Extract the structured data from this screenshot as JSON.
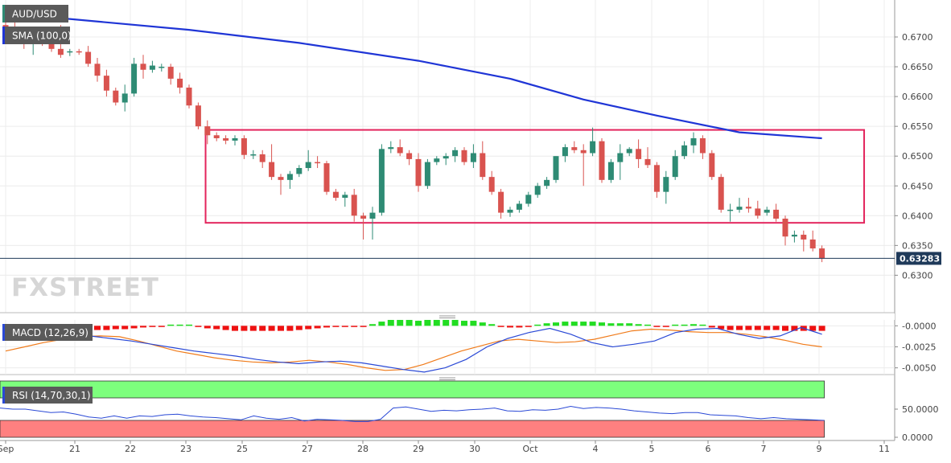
{
  "symbol_label": "AUD/USD",
  "sma_label": "SMA (100,0)",
  "macd_label": "MACD (12,26,9)",
  "rsi_label": "RSI (14,70,30,1)",
  "watermark": "FXSTREET",
  "last_price_label": "0.63283",
  "colors": {
    "bull": "#2e8b74",
    "bear": "#d9534f",
    "sma": "#1f35d6",
    "box": "#e3245c",
    "macd_line": "#2a49d6",
    "signal_line": "#f07b1a",
    "hist_pos": "#22dd22",
    "hist_neg": "#ee1111",
    "rsi_overbought": "#7dff7d",
    "rsi_oversold": "#ff8080",
    "rsi_line": "#2a49d6"
  },
  "chart_data": [
    {
      "type": "candlestick",
      "name": "price",
      "x_ticks": [
        "Sep",
        "21",
        "22",
        "23",
        "25",
        "27",
        "28",
        "29",
        "30",
        "Oct",
        "4",
        "5",
        "6",
        "7",
        "9",
        "11"
      ],
      "y_ticks": [
        "0.6300",
        "0.6350",
        "0.6400",
        "0.6450",
        "0.6500",
        "0.6550",
        "0.6600",
        "0.6650",
        "0.6700"
      ],
      "ylim": [
        0.6283,
        0.6727
      ],
      "last_price": 0.63283,
      "ohlc": [
        [
          0.672,
          0.673,
          0.6705,
          0.6712
        ],
        [
          0.6712,
          0.6725,
          0.6695,
          0.67
        ],
        [
          0.67,
          0.671,
          0.668,
          0.6688
        ],
        [
          0.6688,
          0.67,
          0.667,
          0.6695
        ],
        [
          0.6695,
          0.6705,
          0.6685,
          0.669
        ],
        [
          0.669,
          0.67,
          0.6675,
          0.668
        ],
        [
          0.668,
          0.672,
          0.6665,
          0.667
        ],
        [
          0.6674,
          0.668,
          0.6668,
          0.6676
        ],
        [
          0.6676,
          0.668,
          0.667,
          0.6675
        ],
        [
          0.6675,
          0.6685,
          0.665,
          0.6655
        ],
        [
          0.6655,
          0.6665,
          0.6625,
          0.6635
        ],
        [
          0.6635,
          0.6645,
          0.66,
          0.661
        ],
        [
          0.661,
          0.6615,
          0.6585,
          0.659
        ],
        [
          0.659,
          0.662,
          0.6575,
          0.6605
        ],
        [
          0.6605,
          0.6665,
          0.66,
          0.6655
        ],
        [
          0.6655,
          0.667,
          0.663,
          0.6645
        ],
        [
          0.6645,
          0.666,
          0.664,
          0.6652
        ],
        [
          0.6648,
          0.6655,
          0.6642,
          0.665
        ],
        [
          0.665,
          0.6655,
          0.662,
          0.663
        ],
        [
          0.663,
          0.664,
          0.6605,
          0.6615
        ],
        [
          0.6615,
          0.662,
          0.658,
          0.6585
        ],
        [
          0.6585,
          0.659,
          0.6545,
          0.655
        ],
        [
          0.655,
          0.656,
          0.652,
          0.6535
        ],
        [
          0.6535,
          0.654,
          0.6525,
          0.653
        ],
        [
          0.653,
          0.6535,
          0.652,
          0.6526
        ],
        [
          0.6526,
          0.6535,
          0.6518,
          0.653
        ],
        [
          0.653,
          0.6535,
          0.6495,
          0.6502
        ],
        [
          0.6502,
          0.651,
          0.6495,
          0.6503
        ],
        [
          0.6503,
          0.651,
          0.648,
          0.649
        ],
        [
          0.649,
          0.652,
          0.646,
          0.6465
        ],
        [
          0.6465,
          0.647,
          0.6435,
          0.646
        ],
        [
          0.646,
          0.6475,
          0.6445,
          0.647
        ],
        [
          0.647,
          0.6485,
          0.6465,
          0.648
        ],
        [
          0.648,
          0.651,
          0.6475,
          0.649
        ],
        [
          0.649,
          0.65,
          0.648,
          0.6488
        ],
        [
          0.6488,
          0.6492,
          0.6435,
          0.644
        ],
        [
          0.644,
          0.6445,
          0.6425,
          0.643
        ],
        [
          0.643,
          0.644,
          0.6415,
          0.6435
        ],
        [
          0.6435,
          0.6445,
          0.639,
          0.64
        ],
        [
          0.64,
          0.6405,
          0.636,
          0.6395
        ],
        [
          0.6395,
          0.6415,
          0.636,
          0.6405
        ],
        [
          0.6405,
          0.652,
          0.64,
          0.6512
        ],
        [
          0.6512,
          0.6525,
          0.6505,
          0.6515
        ],
        [
          0.6515,
          0.6528,
          0.65,
          0.6505
        ],
        [
          0.6505,
          0.651,
          0.6485,
          0.6495
        ],
        [
          0.6495,
          0.6505,
          0.644,
          0.645
        ],
        [
          0.645,
          0.6495,
          0.6445,
          0.649
        ],
        [
          0.649,
          0.65,
          0.6485,
          0.6496
        ],
        [
          0.6496,
          0.6505,
          0.6485,
          0.65
        ],
        [
          0.65,
          0.6515,
          0.649,
          0.651
        ],
        [
          0.651,
          0.6515,
          0.6485,
          0.649
        ],
        [
          0.649,
          0.652,
          0.648,
          0.6505
        ],
        [
          0.6505,
          0.6525,
          0.646,
          0.6465
        ],
        [
          0.6465,
          0.6475,
          0.6435,
          0.644
        ],
        [
          0.644,
          0.6445,
          0.6395,
          0.6405
        ],
        [
          0.6405,
          0.6415,
          0.6398,
          0.641
        ],
        [
          0.641,
          0.6425,
          0.6405,
          0.642
        ],
        [
          0.642,
          0.644,
          0.6415,
          0.6435
        ],
        [
          0.6435,
          0.6455,
          0.643,
          0.645
        ],
        [
          0.645,
          0.6465,
          0.6445,
          0.646
        ],
        [
          0.646,
          0.65,
          0.6455,
          0.65
        ],
        [
          0.65,
          0.652,
          0.649,
          0.6515
        ],
        [
          0.6515,
          0.6525,
          0.6505,
          0.651
        ],
        [
          0.651,
          0.652,
          0.645,
          0.6505
        ],
        [
          0.6505,
          0.6548,
          0.65,
          0.6525
        ],
        [
          0.6525,
          0.653,
          0.6455,
          0.646
        ],
        [
          0.646,
          0.6495,
          0.6455,
          0.649
        ],
        [
          0.649,
          0.652,
          0.646,
          0.6505
        ],
        [
          0.6505,
          0.6515,
          0.65,
          0.6512
        ],
        [
          0.6512,
          0.6528,
          0.648,
          0.6495
        ],
        [
          0.6495,
          0.6515,
          0.648,
          0.6485
        ],
        [
          0.6485,
          0.649,
          0.643,
          0.644
        ],
        [
          0.644,
          0.6475,
          0.642,
          0.6465
        ],
        [
          0.6465,
          0.651,
          0.646,
          0.65
        ],
        [
          0.65,
          0.6525,
          0.6495,
          0.6518
        ],
        [
          0.6518,
          0.654,
          0.6505,
          0.653
        ],
        [
          0.653,
          0.6535,
          0.6495,
          0.6505
        ],
        [
          0.6505,
          0.651,
          0.646,
          0.6465
        ],
        [
          0.6465,
          0.647,
          0.6405,
          0.641
        ],
        [
          0.641,
          0.642,
          0.639,
          0.641
        ],
        [
          0.641,
          0.643,
          0.6405,
          0.6415
        ],
        [
          0.6415,
          0.643,
          0.6405,
          0.6412
        ],
        [
          0.6412,
          0.6425,
          0.6395,
          0.64
        ],
        [
          0.6405,
          0.6415,
          0.64,
          0.641
        ],
        [
          0.641,
          0.642,
          0.639,
          0.6395
        ],
        [
          0.6395,
          0.64,
          0.635,
          0.6365
        ],
        [
          0.6365,
          0.6375,
          0.6355,
          0.6368
        ],
        [
          0.6368,
          0.6375,
          0.634,
          0.636
        ],
        [
          0.636,
          0.6375,
          0.634,
          0.6345
        ],
        [
          0.6345,
          0.635,
          0.6322,
          0.6328
        ]
      ]
    },
    {
      "type": "line",
      "name": "SMA (100,0)",
      "points": [
        [
          0.0,
          0.674
        ],
        [
          20.0,
          0.6712
        ],
        [
          32.0,
          0.669
        ],
        [
          45.0,
          0.666
        ],
        [
          55.0,
          0.663
        ],
        [
          63.0,
          0.6595
        ],
        [
          71.0,
          0.6568
        ],
        [
          80.0,
          0.654
        ],
        [
          89.0,
          0.653
        ]
      ]
    },
    {
      "type": "rectangle",
      "name": "range",
      "x_start": 21.8,
      "x_end": 93.6,
      "y_top": 0.6544,
      "y_bottom": 0.6388
    },
    {
      "type": "bar+line",
      "name": "MACD (12,26,9)",
      "y_ticks": [
        "-0.0000",
        "-0.0025",
        "-0.0050"
      ],
      "ylim": [
        -0.0058,
        0.0007
      ],
      "histogram": [
        -0.0003,
        -0.0004,
        -0.0005,
        -0.0005,
        -0.0005,
        -0.0005,
        -0.0005,
        -0.0005,
        -0.0005,
        -0.0005,
        -0.0005,
        -0.0005,
        -0.0004,
        -0.0004,
        -0.0003,
        -0.0002,
        -0.0001,
        -0.0001,
        0.0,
        0.0,
        0.0,
        -0.0001,
        -0.0003,
        -0.0004,
        -0.0005,
        -0.0006,
        -0.0006,
        -0.0006,
        -0.0006,
        -0.0006,
        -0.0006,
        -0.0006,
        -0.0005,
        -0.0004,
        -0.0003,
        -0.0002,
        -0.0001,
        -0.0001,
        -0.0001,
        -0.0001,
        0.0002,
        0.0005,
        0.0007,
        0.0007,
        0.0007,
        0.0006,
        0.0007,
        0.0007,
        0.0007,
        0.0007,
        0.0006,
        0.0006,
        0.0004,
        0.0002,
        -0.0001,
        -0.0002,
        -0.0002,
        -0.0001,
        0.0001,
        0.0003,
        0.0004,
        0.0005,
        0.0005,
        0.0005,
        0.0005,
        0.0004,
        0.0003,
        0.0003,
        0.0003,
        0.0002,
        0.0001,
        -0.0001,
        -0.0001,
        0.0,
        0.0001,
        0.0002,
        0.0001,
        -0.0002,
        -0.0004,
        -0.0005,
        -0.0005,
        -0.0005,
        -0.0005,
        -0.0005,
        -0.0005,
        -0.0006,
        -0.0006,
        -0.0006,
        -0.0006,
        -0.0006
      ],
      "macd_line": [
        -0.001,
        -0.0008,
        -0.0007,
        -0.0009,
        -0.0012,
        -0.0015,
        -0.0018,
        -0.0022,
        -0.0026,
        -0.003,
        -0.0033,
        -0.0036,
        -0.004,
        -0.0043,
        -0.0045,
        -0.0043,
        -0.0042,
        -0.0044,
        -0.0048,
        -0.0052,
        -0.0055,
        -0.005,
        -0.004,
        -0.0025,
        -0.0015,
        -0.0008,
        -0.0003,
        -0.001,
        -0.002,
        -0.0025,
        -0.0022,
        -0.0018,
        -0.0008,
        -0.0004,
        -0.0003,
        -0.001,
        -0.0015,
        -0.0012,
        -0.0002,
        -0.001
      ],
      "signal_line": [
        -0.003,
        -0.0025,
        -0.002,
        -0.0016,
        -0.0013,
        -0.0012,
        -0.0013,
        -0.0018,
        -0.0024,
        -0.003,
        -0.0034,
        -0.0038,
        -0.0041,
        -0.0043,
        -0.0044,
        -0.0043,
        -0.0041,
        -0.0043,
        -0.0046,
        -0.005,
        -0.0053,
        -0.0052,
        -0.0046,
        -0.0038,
        -0.003,
        -0.0024,
        -0.0018,
        -0.0016,
        -0.0018,
        -0.002,
        -0.0019,
        -0.0016,
        -0.0011,
        -0.0006,
        -0.0004,
        -0.0005,
        -0.0007,
        -0.0008,
        -0.0008,
        -0.001,
        -0.0013,
        -0.0017,
        -0.0022,
        -0.0025
      ]
    },
    {
      "type": "line",
      "name": "RSI (14,70,30,1)",
      "y_ticks": [
        "50.0000",
        "0.0000"
      ],
      "ylim": [
        0,
        100
      ],
      "overbought": 70,
      "oversold": 30,
      "values": [
        52,
        50,
        50,
        47,
        44,
        45,
        41,
        36,
        34,
        38,
        34,
        38,
        37,
        40,
        41,
        38,
        36,
        35,
        33,
        31,
        38,
        34,
        32,
        35,
        29,
        32,
        31,
        30,
        28,
        28,
        32,
        52,
        54,
        50,
        46,
        48,
        47,
        49,
        50,
        52,
        47,
        46,
        49,
        48,
        50,
        55,
        51,
        53,
        52,
        50,
        47,
        45,
        43,
        42,
        44,
        44,
        40,
        39,
        38,
        35,
        33,
        35,
        33,
        32,
        31,
        30
      ]
    }
  ]
}
